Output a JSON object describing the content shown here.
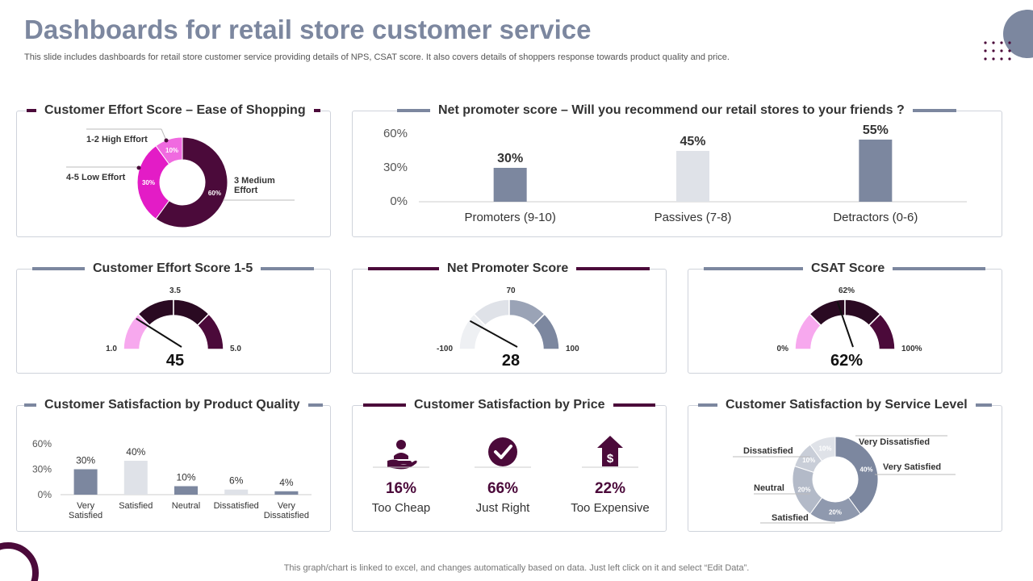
{
  "header": {
    "title": "Dashboards for retail store customer service",
    "subtitle": "This slide includes dashboards for retail store customer service providing details of NPS, CSAT score. It also covers details of shoppers response towards product quality and price."
  },
  "footer": "This graph/chart is linked to excel, and changes automatically based on data. Just left click on it and select “Edit Data”.",
  "colors": {
    "dark": "#4b0a3a",
    "magenta": "#e31cc6",
    "pink": "#f06ae0",
    "slate": "#7c879f",
    "light": "#dfe2e8",
    "lightpink": "#f7a8ee",
    "darkslate": "#2f2f2f"
  },
  "cards": {
    "ces_ease": {
      "title": "Customer Effort Score – Ease of Shopping",
      "chart_data": {
        "type": "pie",
        "slices": [
          {
            "label": "3 Medium Effort",
            "value": 60,
            "pct": "60%",
            "color": "#4b0a3a"
          },
          {
            "label": "4-5 Low Effort",
            "value": 30,
            "pct": "30%",
            "color": "#e31cc6"
          },
          {
            "label": "1-2 High Effort",
            "value": 10,
            "pct": "10%",
            "color": "#f06ae0"
          }
        ]
      }
    },
    "nps_recommend": {
      "title": "Net promoter score – Will you recommend our retail stores to your friends ?",
      "chart_data": {
        "type": "bar",
        "categories": [
          "Promoters (9-10)",
          "Passives (7-8)",
          "Detractors (0-6)"
        ],
        "values": [
          30,
          45,
          55
        ],
        "value_labels": [
          "30%",
          "45%",
          "55%"
        ],
        "colors": [
          "#7c879f",
          "#dfe2e8",
          "#7c879f"
        ],
        "ylim": [
          0,
          60
        ],
        "yticks": [
          "0%",
          "30%",
          "60%"
        ]
      }
    },
    "ces_gauge": {
      "title": "Customer Effort Score 1-5",
      "chart_data": {
        "type": "gauge",
        "min_label": "1.0",
        "max_label": "5.0",
        "mid_label": "3.5",
        "value_label": "45",
        "needle_fraction": 0.22
      }
    },
    "nps_gauge": {
      "title": "Net Promoter Score",
      "chart_data": {
        "type": "gauge",
        "min_label": "-100",
        "max_label": "100",
        "mid_label": "70",
        "value_label": "28",
        "needle_fraction": 0.2
      }
    },
    "csat_gauge": {
      "title": "CSAT Score",
      "chart_data": {
        "type": "gauge",
        "min_label": "0%",
        "max_label": "100%",
        "mid_label": "62%",
        "value_label": "62%",
        "needle_fraction": 0.45
      }
    },
    "product_quality": {
      "title": "Customer Satisfaction by Product Quality",
      "chart_data": {
        "type": "bar",
        "categories": [
          "Very Satisfied",
          "Satisfied",
          "Neutral",
          "Dissatisfied",
          "Very Dissatisfied"
        ],
        "category_lines": [
          [
            "Very",
            "Satisfied"
          ],
          [
            "Satisfied"
          ],
          [
            "Neutral"
          ],
          [
            "Dissatisfied"
          ],
          [
            "Very",
            "Dissatisfied"
          ]
        ],
        "values": [
          30,
          40,
          10,
          6,
          4
        ],
        "value_labels": [
          "30%",
          "40%",
          "10%",
          "6%",
          "4%"
        ],
        "colors": [
          "#7c879f",
          "#dfe2e8",
          "#7c879f",
          "#dfe2e8",
          "#7c879f"
        ],
        "ylim": [
          0,
          60
        ],
        "yticks": [
          "0%",
          "30%",
          "60%"
        ]
      }
    },
    "price": {
      "title": "Customer Satisfaction by Price",
      "items": [
        {
          "icon": "hand-person-icon",
          "value": "16%",
          "label": "Too Cheap"
        },
        {
          "icon": "checkmark-icon",
          "value": "66%",
          "label": "Just Right"
        },
        {
          "icon": "dollar-house-icon",
          "value": "22%",
          "label": "Too Expensive"
        }
      ]
    },
    "service_level": {
      "title": "Customer Satisfaction by Service Level",
      "chart_data": {
        "type": "pie",
        "slices": [
          {
            "label": "Very Satisfied",
            "value": 40,
            "pct": "40%",
            "color": "#7c879f"
          },
          {
            "label": "Satisfied",
            "value": 20,
            "pct": "20%",
            "color": "#8f99ae"
          },
          {
            "label": "Neutral",
            "value": 20,
            "pct": "20%",
            "color": "#b3bac8"
          },
          {
            "label": "Dissatisfied",
            "value": 10,
            "pct": "10%",
            "color": "#c9ced8"
          },
          {
            "label": "Very Dissatisfied",
            "value": 10,
            "pct": "10%",
            "color": "#dfe2e8"
          }
        ]
      }
    }
  }
}
